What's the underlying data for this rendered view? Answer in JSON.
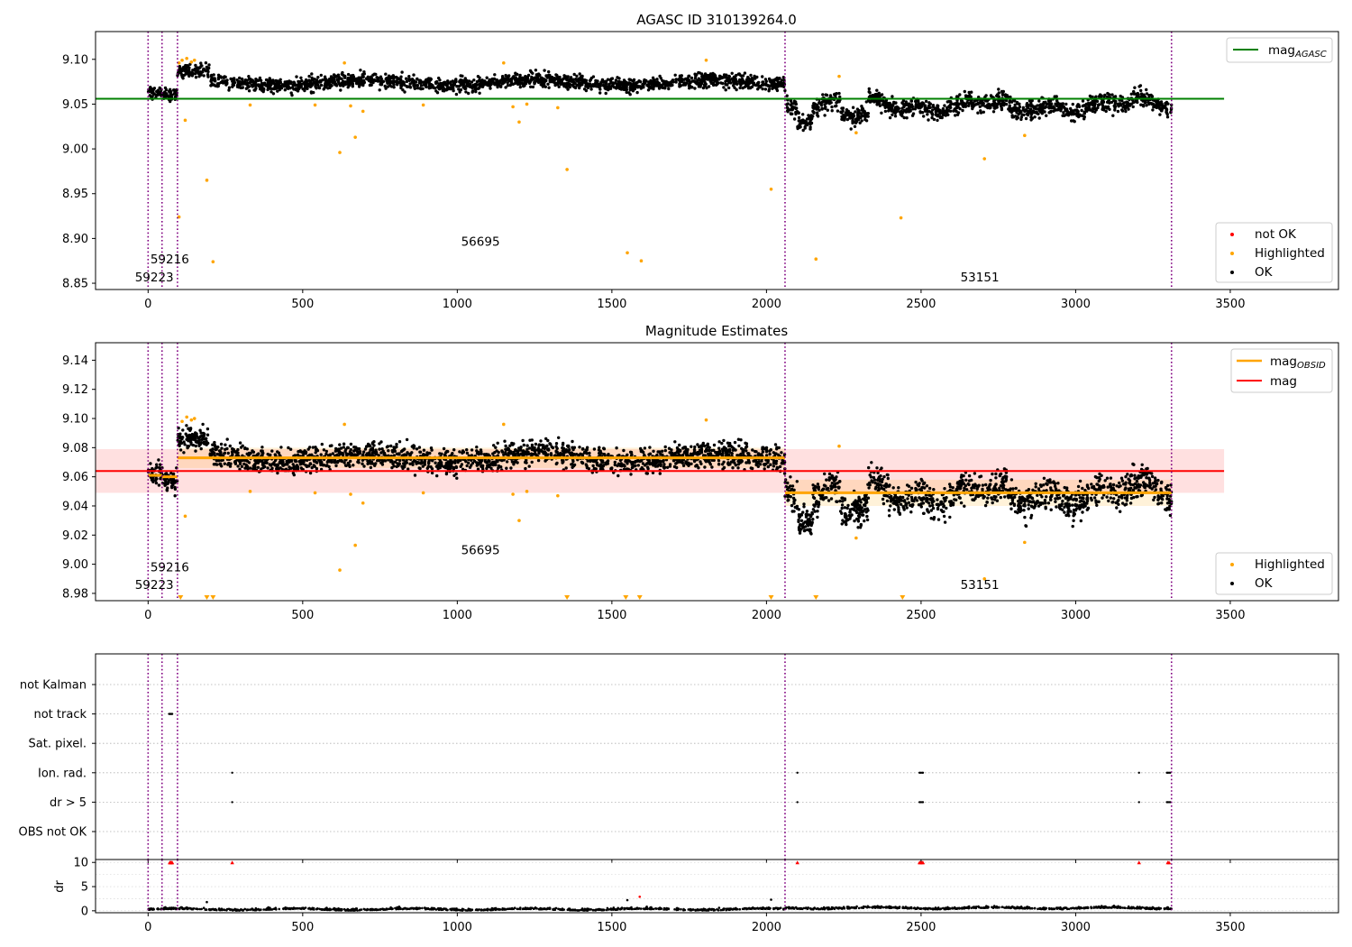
{
  "chart_data": [
    {
      "type": "scatter",
      "title": "AGASC ID 310139264.0",
      "xlim": [
        -170,
        3850
      ],
      "ylim": [
        8.843,
        9.131
      ],
      "xticks": [
        0,
        500,
        1000,
        1500,
        2000,
        2500,
        3000,
        3500
      ],
      "yticks": [
        8.85,
        8.9,
        8.95,
        9.0,
        9.05,
        9.1
      ],
      "ytick_labels": [
        "8.85",
        "8.90",
        "8.95",
        "9.00",
        "9.05",
        "9.10"
      ],
      "vlines": [
        0,
        45,
        95,
        2060,
        3310
      ],
      "hline": {
        "name": "mag_AGASC",
        "value": 9.056,
        "x": [
          -170,
          3480
        ],
        "color": "#008000"
      },
      "annotations": [
        {
          "text": "59216",
          "x": 70,
          "y": 8.872
        },
        {
          "text": "59223",
          "x": 20,
          "y": 8.852
        },
        {
          "text": "56695",
          "x": 1075,
          "y": 8.892
        },
        {
          "text": "53151",
          "x": 2690,
          "y": 8.852
        }
      ],
      "legend_top": [
        {
          "label": "mag",
          "sub": "AGASC",
          "color": "#008000"
        }
      ],
      "legend_bottom": [
        {
          "label": "not OK",
          "color": "#ff0000"
        },
        {
          "label": "Highlighted",
          "color": "#ffa500"
        },
        {
          "label": "OK",
          "color": "#000000"
        }
      ],
      "segments": [
        {
          "x0": 0,
          "x1": 45,
          "mean": 9.063,
          "spread": 0.008
        },
        {
          "x0": 45,
          "x1": 95,
          "mean": 9.06,
          "spread": 0.008
        },
        {
          "x0": 95,
          "x1": 2060,
          "mean": 9.074,
          "spread": 0.008
        },
        {
          "x0": 2060,
          "x1": 3310,
          "mean": 9.049,
          "spread": 0.01
        }
      ],
      "highlighted": [
        [
          100,
          9.096
        ],
        [
          110,
          9.099
        ],
        [
          125,
          9.101
        ],
        [
          140,
          9.097
        ],
        [
          150,
          9.099
        ],
        [
          120,
          9.032
        ],
        [
          100,
          8.924
        ],
        [
          190,
          8.965
        ],
        [
          210,
          8.874
        ],
        [
          330,
          9.049
        ],
        [
          540,
          9.049
        ],
        [
          620,
          8.996
        ],
        [
          635,
          9.096
        ],
        [
          655,
          9.048
        ],
        [
          670,
          9.013
        ],
        [
          695,
          9.042
        ],
        [
          890,
          9.049
        ],
        [
          1150,
          9.096
        ],
        [
          1180,
          9.047
        ],
        [
          1200,
          9.03
        ],
        [
          1225,
          9.05
        ],
        [
          1325,
          9.046
        ],
        [
          1355,
          8.977
        ],
        [
          1550,
          8.884
        ],
        [
          1595,
          8.875
        ],
        [
          1805,
          9.099
        ],
        [
          2015,
          8.955
        ],
        [
          2160,
          8.877
        ],
        [
          2235,
          9.081
        ],
        [
          2290,
          9.018
        ],
        [
          2435,
          8.923
        ],
        [
          2705,
          8.989
        ],
        [
          2835,
          9.015
        ]
      ]
    },
    {
      "type": "scatter",
      "title": "Magnitude Estimates",
      "xlim": [
        -170,
        3850
      ],
      "ylim": [
        8.975,
        9.152
      ],
      "xticks": [
        0,
        500,
        1000,
        1500,
        2000,
        2500,
        3000,
        3500
      ],
      "yticks": [
        8.98,
        9.0,
        9.02,
        9.04,
        9.06,
        9.08,
        9.1,
        9.12,
        9.14
      ],
      "ytick_labels": [
        "8.98",
        "9.00",
        "9.02",
        "9.04",
        "9.06",
        "9.08",
        "9.10",
        "9.12",
        "9.14"
      ],
      "vlines": [
        0,
        45,
        95,
        2060,
        3310
      ],
      "mag_line": {
        "value": 9.064,
        "band": [
          9.049,
          9.079
        ],
        "x": [
          -170,
          3480
        ],
        "color": "#ff0000"
      },
      "mag_obsid": [
        {
          "x0": 0,
          "x1": 45,
          "value": 9.061
        },
        {
          "x0": 45,
          "x1": 95,
          "value": 9.06
        },
        {
          "x0": 95,
          "x1": 2060,
          "value": 9.073,
          "band": [
            9.066,
            9.08
          ]
        },
        {
          "x0": 2060,
          "x1": 3310,
          "value": 9.049,
          "band": [
            9.04,
            9.058
          ]
        }
      ],
      "annotations": [
        {
          "text": "59216",
          "x": 70,
          "y": 8.995
        },
        {
          "text": "59223",
          "x": 20,
          "y": 8.983
        },
        {
          "text": "56695",
          "x": 1075,
          "y": 9.007
        },
        {
          "text": "53151",
          "x": 2690,
          "y": 8.983
        }
      ],
      "legend_top": [
        {
          "label": "mag",
          "sub": "OBSID",
          "color": "#ffa500"
        },
        {
          "label": "mag",
          "sub": "",
          "color": "#ff0000"
        }
      ],
      "legend_bottom": [
        {
          "label": "Highlighted",
          "color": "#ffa500"
        },
        {
          "label": "OK",
          "color": "#000000"
        }
      ],
      "offscale_markers": [
        105,
        190,
        210,
        1355,
        1545,
        1590,
        2015,
        2160,
        2440
      ],
      "highlighted": [
        [
          110,
          9.098
        ],
        [
          125,
          9.101
        ],
        [
          140,
          9.099
        ],
        [
          150,
          9.1
        ],
        [
          120,
          9.033
        ],
        [
          330,
          9.05
        ],
        [
          540,
          9.049
        ],
        [
          620,
          8.996
        ],
        [
          635,
          9.096
        ],
        [
          655,
          9.048
        ],
        [
          670,
          9.013
        ],
        [
          695,
          9.042
        ],
        [
          890,
          9.049
        ],
        [
          1150,
          9.096
        ],
        [
          1180,
          9.048
        ],
        [
          1200,
          9.03
        ],
        [
          1225,
          9.05
        ],
        [
          1325,
          9.047
        ],
        [
          1805,
          9.099
        ],
        [
          2235,
          9.081
        ],
        [
          2290,
          9.018
        ],
        [
          2705,
          8.99
        ],
        [
          2835,
          9.015
        ]
      ]
    },
    {
      "type": "scatter",
      "title": "",
      "xlim": [
        -170,
        3850
      ],
      "xticks": [
        0,
        500,
        1000,
        1500,
        2000,
        2500,
        3000,
        3500
      ],
      "vlines": [
        0,
        45,
        95,
        2060,
        3310
      ],
      "flag_rows": [
        "not Kalman",
        "not track",
        "Sat. pixel.",
        "Ion. rad.",
        "dr > 5",
        "OBS not OK"
      ],
      "flag_events": {
        "not track": [
          68,
          70,
          72,
          74,
          76,
          78
        ],
        "Ion. rad.": [
          272,
          2100,
          2495,
          2498,
          2503,
          2506,
          3205,
          3295,
          3298,
          3302,
          3306
        ],
        "dr > 5": [
          272,
          2100,
          2495,
          2498,
          2503,
          2506,
          3205,
          3295,
          3298,
          3302,
          3306
        ]
      },
      "dr_axis": {
        "ylabel": "dr",
        "ylim": [
          -0.4,
          10.6
        ],
        "yticks": [
          0,
          5,
          10
        ],
        "ytick_labels": [
          "0",
          "5",
          "10"
        ]
      },
      "dr_clipped": [
        70,
        72,
        74,
        76,
        78,
        272,
        2100,
        2495,
        2498,
        2503,
        2506,
        3205,
        3298,
        3302
      ],
      "dr_outliers": [
        [
          190,
          1.8
        ],
        [
          1550,
          2.2
        ],
        [
          1590,
          2.9
        ],
        [
          2015,
          2.3
        ]
      ]
    }
  ]
}
